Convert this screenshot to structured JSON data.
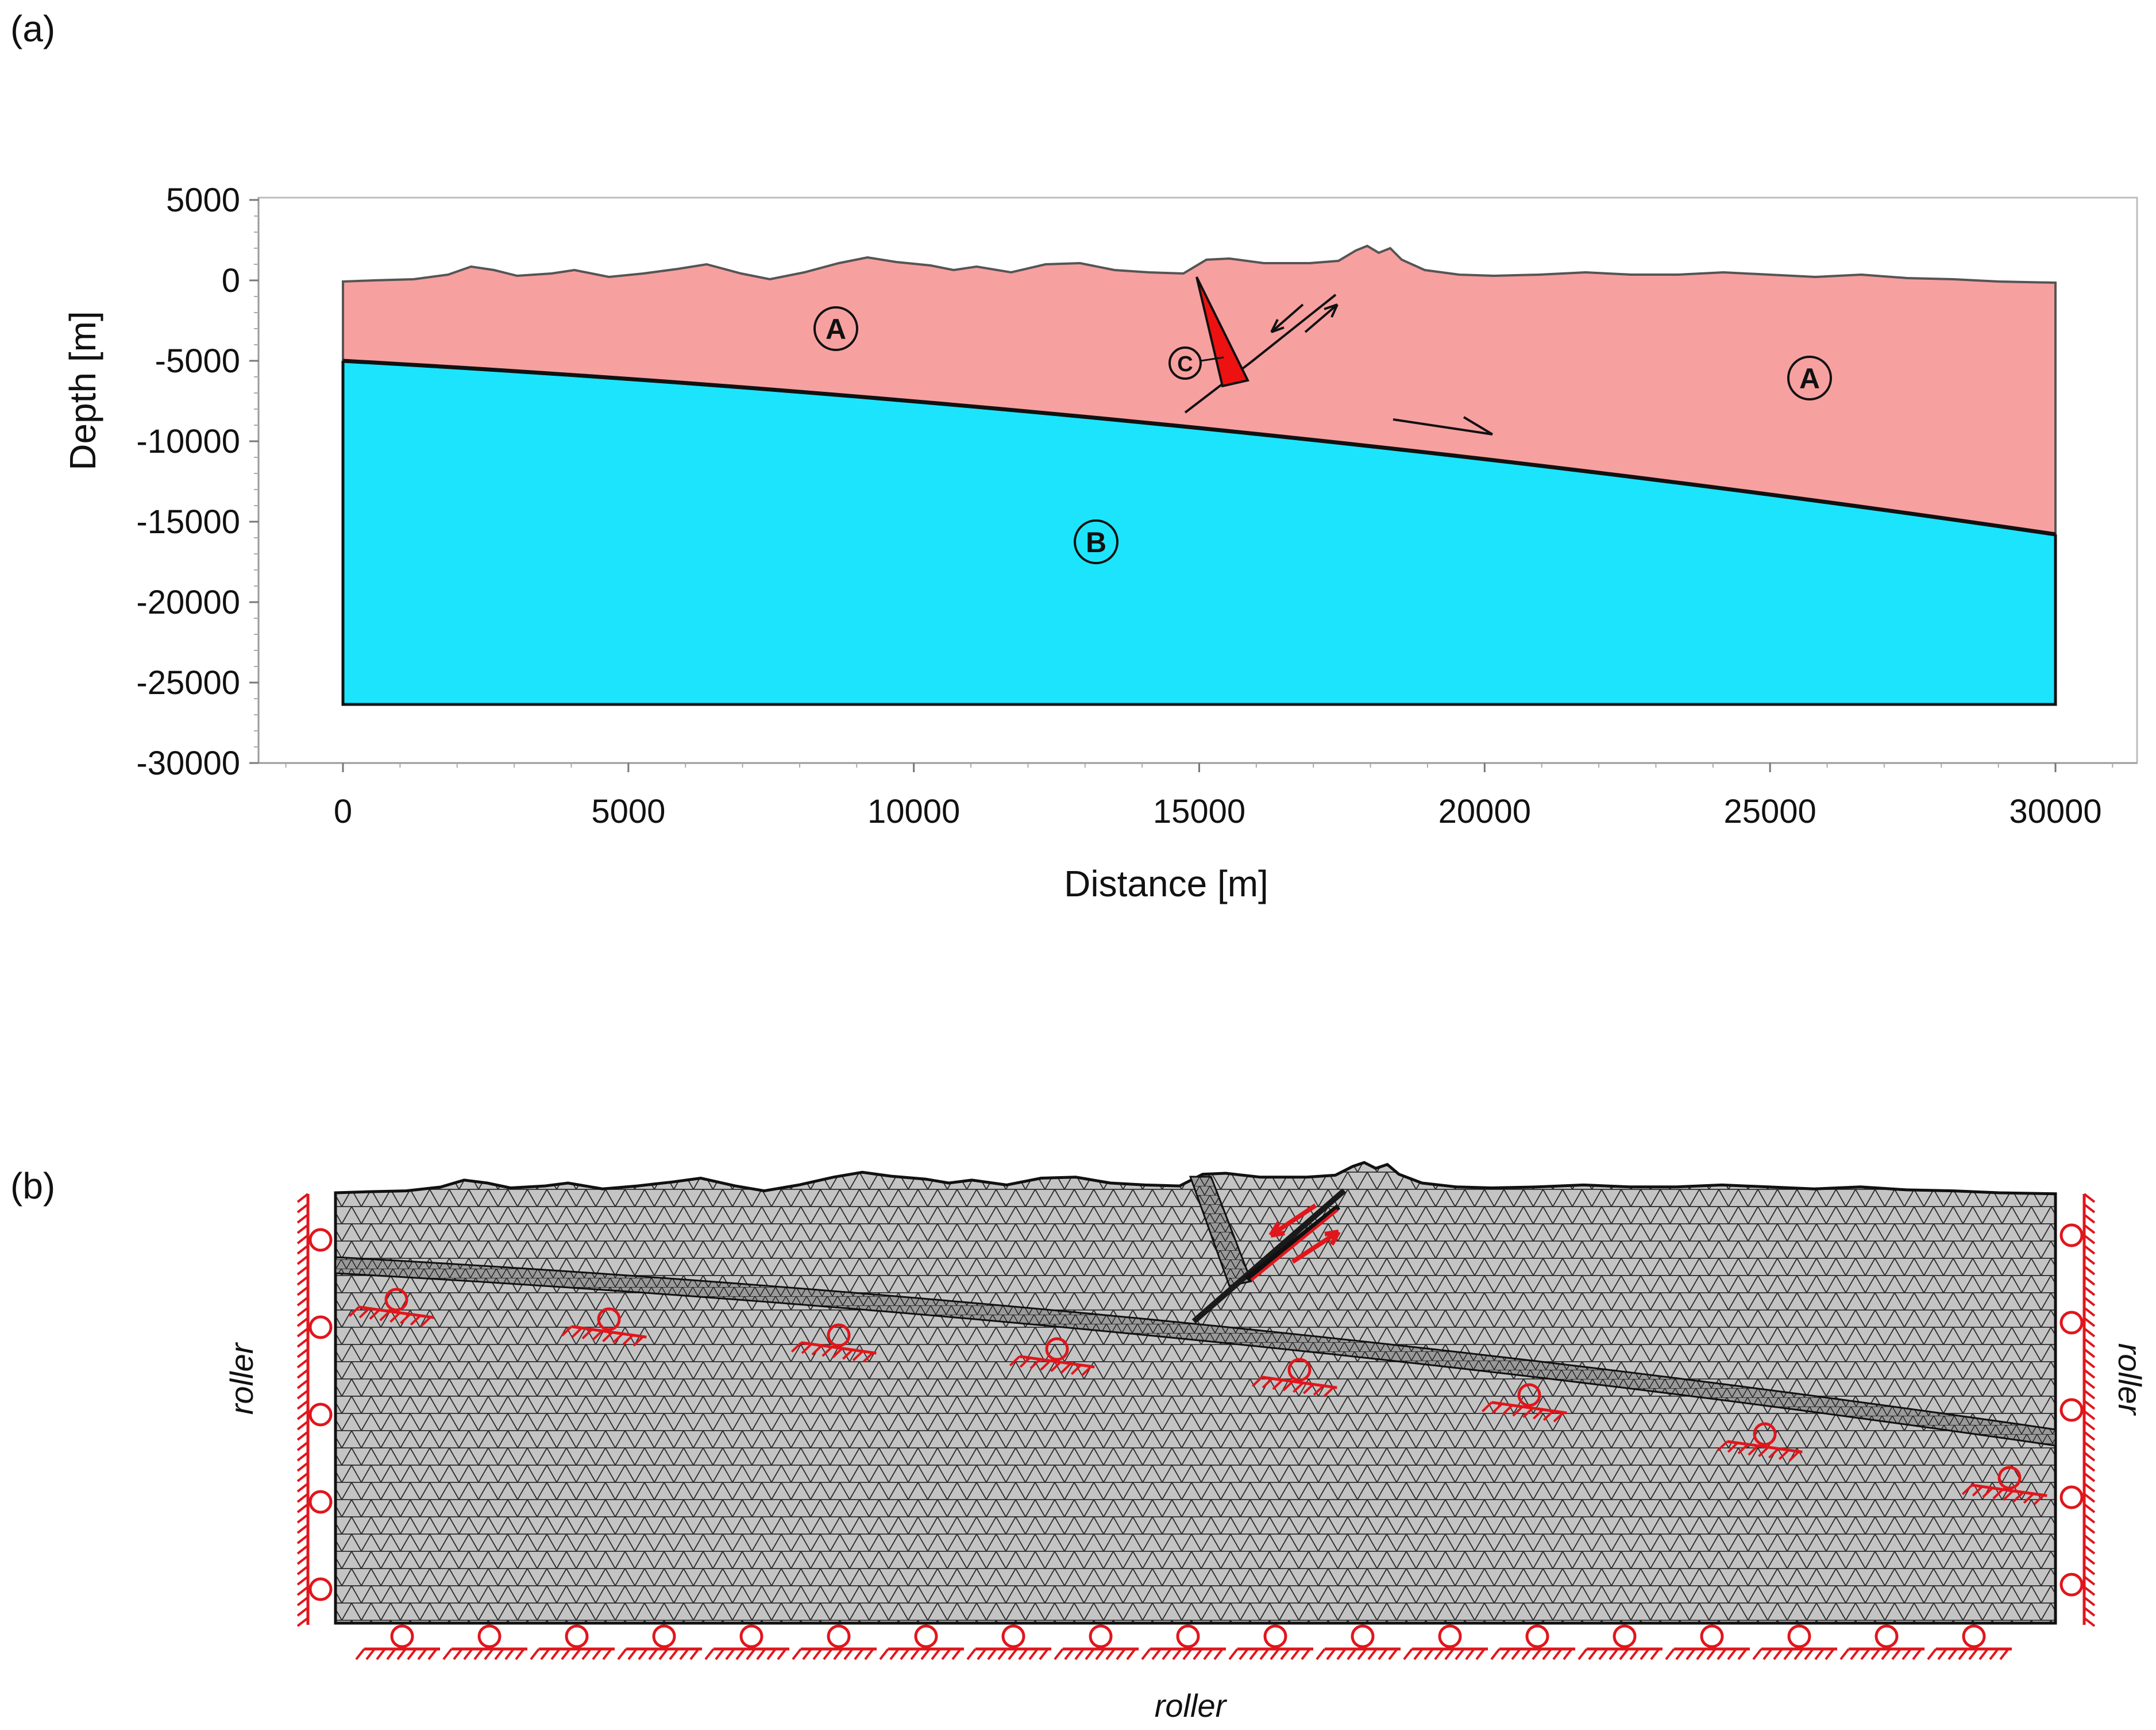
{
  "figure": {
    "panel_a_label": "(a)",
    "panel_b_label": "(b)"
  },
  "panel_a": {
    "xlabel": "Distance [m]",
    "ylabel": "Depth [m]",
    "xlim": [
      -1500,
      31500
    ],
    "ylim": [
      -30000,
      5000
    ],
    "x_ticks": [
      "0",
      "5000",
      "10000",
      "15000",
      "20000",
      "25000",
      "30000"
    ],
    "y_ticks": [
      "5000",
      "0",
      "-5000",
      "-10000",
      "-15000",
      "-20000",
      "-25000",
      "-30000"
    ],
    "regions": [
      {
        "label": "A",
        "description_color": "#f7a0a0"
      },
      {
        "label": "A",
        "description_color": "#f7a0a0"
      },
      {
        "label": "B",
        "description_color": "#1de4fd"
      },
      {
        "label": "C",
        "description_color": "#ee1111"
      }
    ],
    "colors": {
      "layer_a": "#f7a0a0",
      "layer_b": "#1de4fd",
      "fault_wedge": "#ee1111"
    }
  },
  "panel_b": {
    "left_label": "roller",
    "right_label": "roller",
    "bottom_label": "roller",
    "colors": {
      "mesh_fill": "#c4c4c4",
      "mesh_line": "#2a2a2a",
      "support": "#e0161c",
      "shear_band": "#181818"
    }
  }
}
